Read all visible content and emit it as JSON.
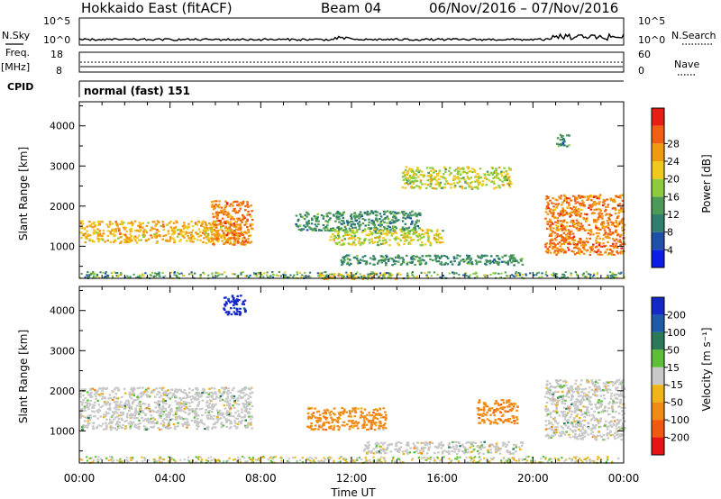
{
  "header": {
    "title": "Hokkaido East (fitACF)",
    "beam": "Beam 04",
    "date_range": "06/Nov/2016 – 07/Nov/2016"
  },
  "strips": {
    "nsky_label": "N.Sky",
    "nsearch_label": "N.Search",
    "nsky_ticks": [
      "10^5",
      "10^0"
    ],
    "nsearch_ticks": [
      "10^5",
      "10^0"
    ],
    "freq_label": "Freq.",
    "freq_unit": "[MHz]",
    "freq_ticks": [
      "18",
      "8"
    ],
    "nave_label": "Nave",
    "nave_ticks": [
      "60",
      "0"
    ],
    "cpid_label": "CPID",
    "cpid_text": "normal (fast) 151"
  },
  "axes": {
    "ylabel": "Slant Range [km]",
    "xlabel": "Time UT",
    "y_ticks": [
      "1000",
      "2000",
      "3000",
      "4000"
    ],
    "x_ticks": [
      "00:00",
      "04:00",
      "08:00",
      "12:00",
      "16:00",
      "20:00",
      "00:00"
    ]
  },
  "power_colorbar": {
    "label": "Power [dB]",
    "ticks": [
      "4",
      "8",
      "12",
      "16",
      "20",
      "24",
      "28"
    ],
    "colors": [
      "#0a1ee6",
      "#1e50aa",
      "#2e7d6e",
      "#4c9a58",
      "#8ccc3c",
      "#f0c81e",
      "#f09a14",
      "#f06010",
      "#e61e14"
    ]
  },
  "velocity_colorbar": {
    "label": "Velocity [m s⁻¹]",
    "ticks": [
      "200",
      "100",
      "50",
      "15",
      "-15",
      "-50",
      "-100",
      "-200"
    ],
    "colors": [
      "#1428c8",
      "#1e5aaa",
      "#2a7a5a",
      "#5cbf36",
      "#c8c8c8",
      "#f0b418",
      "#f08a14",
      "#f05a10",
      "#e61414"
    ]
  },
  "chart_data": [
    {
      "type": "heatmap",
      "panel": "power",
      "xlabel": "Time UT",
      "ylabel": "Slant Range [km]",
      "xlim": [
        0,
        24
      ],
      "ylim": [
        200,
        4600
      ],
      "colorbar_label": "Power [dB]",
      "regions": [
        {
          "name": "",
          "t_start": 0.0,
          "t_end": 7.0,
          "r_low": 1100,
          "r_high": 1650,
          "value_db": 24
        },
        {
          "name": "",
          "t_start": 5.8,
          "t_end": 7.6,
          "r_low": 1050,
          "r_high": 2150,
          "value_db": 28
        },
        {
          "name": "",
          "t_start": 9.5,
          "t_end": 15.0,
          "r_low": 1400,
          "r_high": 1900,
          "value_db": 12
        },
        {
          "name": "",
          "t_start": 11.0,
          "t_end": 16.0,
          "r_low": 1050,
          "r_high": 1450,
          "value_db": 20
        },
        {
          "name": "",
          "t_start": 11.5,
          "t_end": 19.5,
          "r_low": 550,
          "r_high": 800,
          "value_db": 12
        },
        {
          "name": "",
          "t_start": 10.5,
          "t_end": 14.0,
          "r_low": 200,
          "r_high": 350,
          "value_db": 24
        },
        {
          "name": "",
          "t_start": 14.2,
          "t_end": 19.0,
          "r_low": 2450,
          "r_high": 3000,
          "value_db": 20
        },
        {
          "name": "",
          "t_start": 20.5,
          "t_end": 24.0,
          "r_low": 800,
          "r_high": 2300,
          "value_db": 28
        },
        {
          "name": "",
          "t_start": 21.0,
          "t_end": 21.6,
          "r_low": 3500,
          "r_high": 3800,
          "value_db": 12
        }
      ]
    },
    {
      "type": "heatmap",
      "panel": "velocity",
      "xlabel": "Time UT",
      "ylabel": "Slant Range [km]",
      "xlim": [
        0,
        24
      ],
      "ylim": [
        200,
        4600
      ],
      "colorbar_label": "Velocity [m s⁻¹]",
      "regions": [
        {
          "name": "",
          "t_start": 0.0,
          "t_end": 7.6,
          "r_low": 1050,
          "r_high": 2100,
          "value_ms": 0
        },
        {
          "name": "",
          "t_start": 10.0,
          "t_end": 13.5,
          "r_low": 1050,
          "r_high": 1600,
          "value_ms": -60
        },
        {
          "name": "",
          "t_start": 12.5,
          "t_end": 19.5,
          "r_low": 450,
          "r_high": 750,
          "value_ms": 0
        },
        {
          "name": "",
          "t_start": 17.5,
          "t_end": 19.3,
          "r_low": 1200,
          "r_high": 1800,
          "value_ms": -60
        },
        {
          "name": "",
          "t_start": 6.3,
          "t_end": 7.3,
          "r_low": 3900,
          "r_high": 4400,
          "value_ms": 220
        },
        {
          "name": "",
          "t_start": 20.5,
          "t_end": 24.0,
          "r_low": 800,
          "r_high": 2300,
          "value_ms": 0
        }
      ]
    }
  ]
}
